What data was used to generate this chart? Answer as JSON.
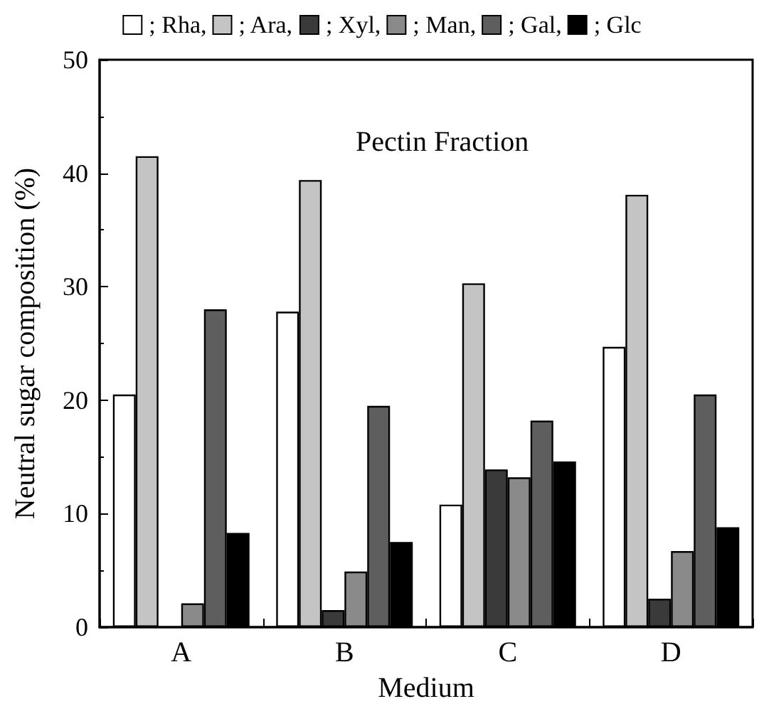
{
  "chart_data": {
    "type": "bar",
    "title": "Pectin Fraction",
    "xlabel": "Medium",
    "ylabel": "Neutral sugar composition (%)",
    "categories": [
      "A",
      "B",
      "C",
      "D"
    ],
    "series": [
      {
        "name": "; Rha,",
        "color": "#ffffff",
        "values": [
          20.5,
          27.8,
          10.8,
          24.7
        ]
      },
      {
        "name": "; Ara,",
        "color": "#c4c4c4",
        "values": [
          41.5,
          39.4,
          30.3,
          38.1
        ]
      },
      {
        "name": "; Xyl,",
        "color": "#3a3a3a",
        "values": [
          null,
          1.5,
          13.9,
          2.5
        ]
      },
      {
        "name": "; Man,",
        "color": "#8a8a8a",
        "values": [
          2.1,
          4.9,
          13.2,
          6.7
        ]
      },
      {
        "name": "; Gal,",
        "color": "#5e5e5e",
        "values": [
          28,
          19.5,
          18.2,
          20.5
        ]
      },
      {
        "name": "; Glc",
        "color": "#000000",
        "values": [
          8.3,
          7.5,
          14.6,
          8.8
        ]
      }
    ],
    "ylim": [
      0,
      50
    ],
    "yticks": [
      0,
      10,
      20,
      30,
      40,
      50
    ],
    "grid": false,
    "legend": "top"
  }
}
